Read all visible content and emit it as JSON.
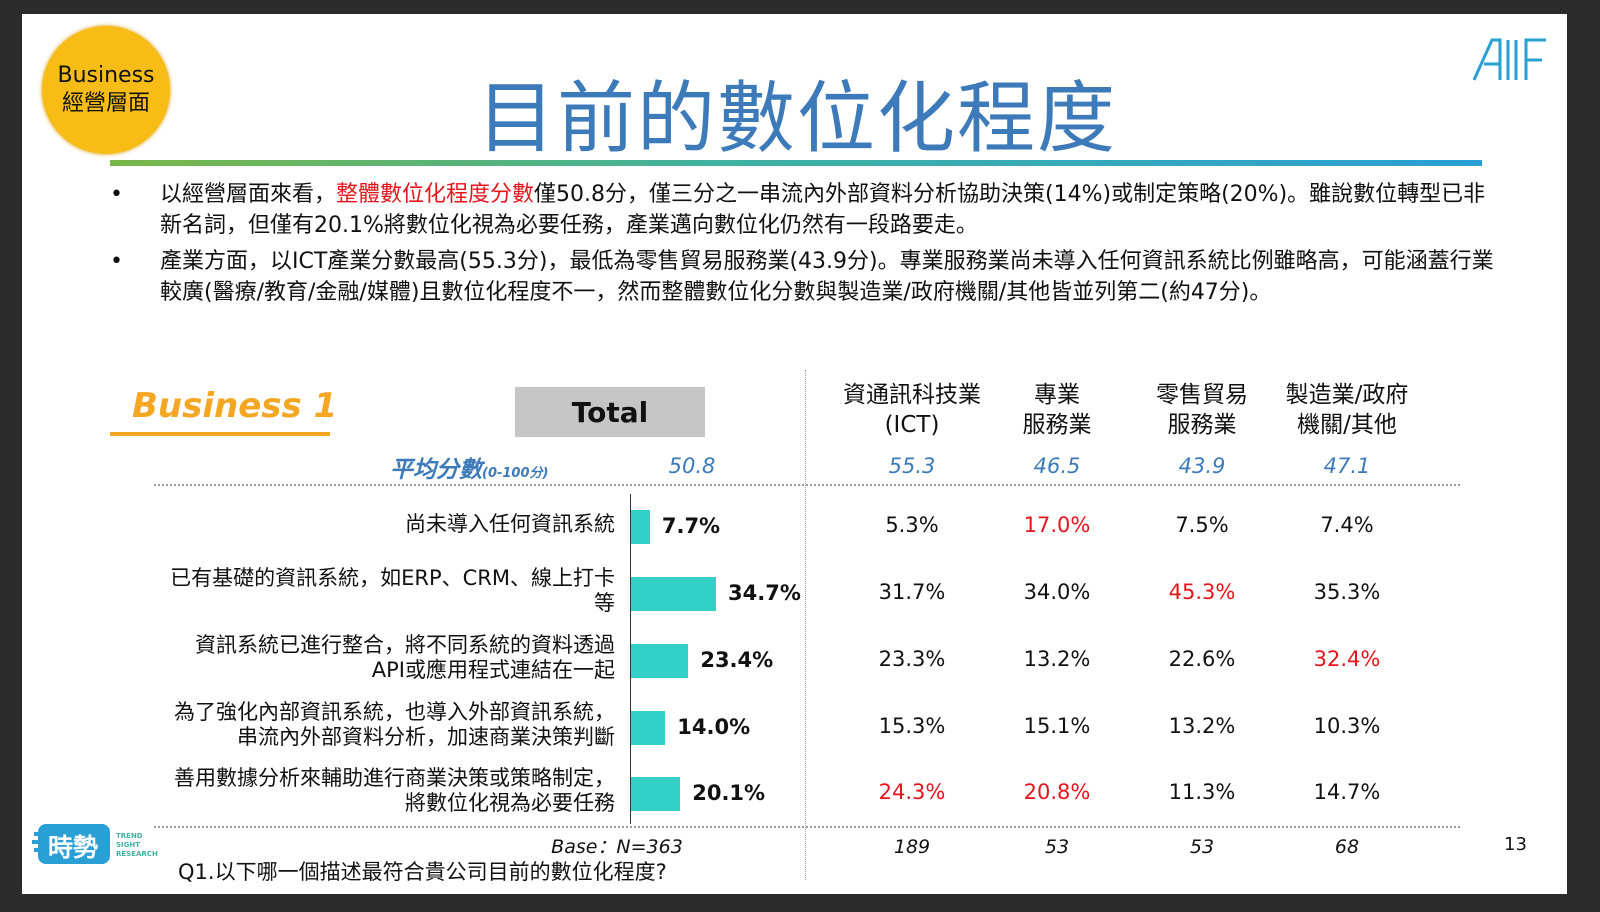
{
  "badge": {
    "line1": "Business",
    "line2": "經營層面"
  },
  "title": "目前的數位化程度",
  "logo_text": "AIIF",
  "bullets": [
    {
      "pre": "以經營層面來看，",
      "highlight": "整體數位化程度分數",
      "post": "僅50.8分，僅三分之一串流內外部資料分析協助決策(14%)或制定策略(20%)。雖說數位轉型已非新名詞，但僅有20.1%將數位化視為必要任務，產業邁向數位化仍然有一段路要走。"
    },
    {
      "pre": "產業方面，以ICT產業分數最高(55.3分)，最低為零售貿易服務業(43.9分)。專業服務業尚未導入任何資訊系統比例雖略高，可能涵蓋行業較廣(醫療/教育/金融/媒體)且數位化程度不一，然而整體數位化分數與製造業/政府機關/其他皆並列第二(約47分)。",
      "highlight": "",
      "post": ""
    }
  ],
  "section_label": "Business 1",
  "avg_label": "平均分數",
  "avg_range": "(0-100分)",
  "base_label": "Base：N=363",
  "question": "Q1.以下哪一個描述最符合貴公司目前的數位化程度?",
  "page_number": "13",
  "footer_logo": {
    "main": "時勢",
    "sub": "TREND SIGHT RESEARCH"
  },
  "chart_data": {
    "type": "bar",
    "orientation": "horizontal",
    "total_header": "Total",
    "total_average": "50.8",
    "categories": [
      "尚未導入任何資訊系統",
      "已有基礎的資訊系統，如ERP、CRM、線上打卡\n等",
      "資訊系統已進行整合，將不同系統的資料透過\nAPI或應用程式連結在一起",
      "為了強化內部資訊系統，也導入外部資訊系統，\n串流內外部資料分析，加速商業決策判斷",
      "善用數據分析來輔助進行商業決策或策略制定，\n將數位化視為必要任務"
    ],
    "values": [
      7.7,
      34.7,
      23.4,
      14.0,
      20.1
    ],
    "value_labels": [
      "7.7%",
      "34.7%",
      "23.4%",
      "14.0%",
      "20.1%"
    ],
    "bar_color": "#33d0c8",
    "highlight_color": "#e8141b",
    "segments": [
      {
        "name": "資通訊科技業\n(ICT)",
        "average": "55.3",
        "base": "189",
        "cells": [
          {
            "v": "5.3%",
            "hi": false
          },
          {
            "v": "31.7%",
            "hi": false
          },
          {
            "v": "23.3%",
            "hi": false
          },
          {
            "v": "15.3%",
            "hi": false
          },
          {
            "v": "24.3%",
            "hi": true
          }
        ]
      },
      {
        "name": "專業\n服務業",
        "average": "46.5",
        "base": "53",
        "cells": [
          {
            "v": "17.0%",
            "hi": true
          },
          {
            "v": "34.0%",
            "hi": false
          },
          {
            "v": "13.2%",
            "hi": false
          },
          {
            "v": "15.1%",
            "hi": false
          },
          {
            "v": "20.8%",
            "hi": true
          }
        ]
      },
      {
        "name": "零售貿易\n服務業",
        "average": "43.9",
        "base": "53",
        "cells": [
          {
            "v": "7.5%",
            "hi": false
          },
          {
            "v": "45.3%",
            "hi": true
          },
          {
            "v": "22.6%",
            "hi": false
          },
          {
            "v": "13.2%",
            "hi": false
          },
          {
            "v": "11.3%",
            "hi": false
          }
        ]
      },
      {
        "name": "製造業/政府\n機關/其他",
        "average": "47.1",
        "base": "68",
        "cells": [
          {
            "v": "7.4%",
            "hi": false
          },
          {
            "v": "35.3%",
            "hi": false
          },
          {
            "v": "32.4%",
            "hi": true
          },
          {
            "v": "10.3%",
            "hi": false
          },
          {
            "v": "14.7%",
            "hi": false
          }
        ]
      }
    ]
  }
}
